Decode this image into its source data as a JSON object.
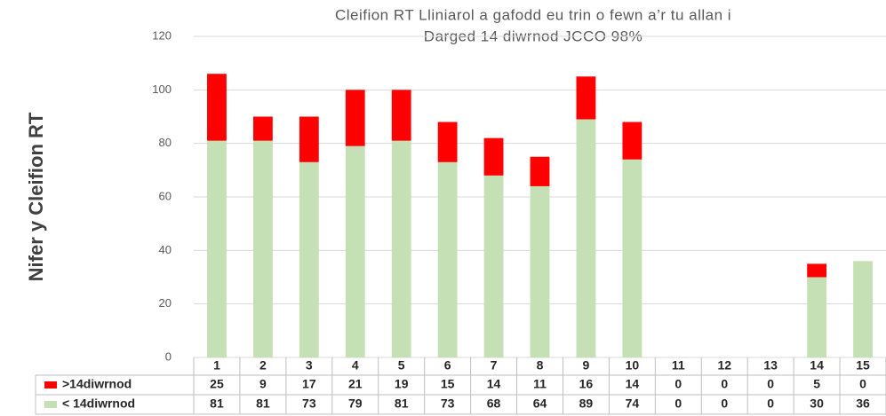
{
  "chart_data": {
    "type": "stacked_bar",
    "title": [
      "Cleifion RT Lliniarol a gafodd eu trin o fewn a’r tu allan i",
      "Darged 14 diwrnod JCCO 98%"
    ],
    "y_label": "Nifer y Cleifion RT",
    "categories": [
      "1",
      "2",
      "3",
      "4",
      "5",
      "6",
      "7",
      "8",
      "9",
      "10",
      "11",
      "12",
      "13",
      "14",
      "15"
    ],
    "series": [
      {
        "name": "< 14diwrnod",
        "color": "#c5e0b4",
        "values": [
          81,
          81,
          73,
          79,
          81,
          73,
          68,
          64,
          89,
          74,
          0,
          0,
          0,
          30,
          36
        ]
      },
      {
        "name": ">14diwrnod",
        "color": "#ff0000",
        "values": [
          25,
          9,
          17,
          21,
          19,
          15,
          14,
          11,
          16,
          14,
          0,
          0,
          0,
          5,
          0
        ]
      }
    ],
    "ylim": [
      0,
      120
    ],
    "yticks": [
      0,
      20,
      40,
      60,
      80,
      100,
      120
    ],
    "grid": true
  }
}
